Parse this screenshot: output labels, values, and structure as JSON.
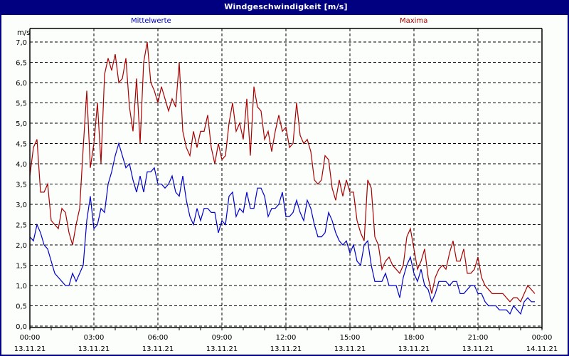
{
  "window": {
    "title": "Windgeschwindigkeit [m/s]"
  },
  "legend": [
    {
      "label": "Mittelwerte",
      "color": "#0000cc"
    },
    {
      "label": "Maxima",
      "color": "#aa0000"
    }
  ],
  "axes": {
    "y_unit": "m/s",
    "y_ticks": [
      "0,0",
      "0,5",
      "1,0",
      "1,5",
      "2,0",
      "2,5",
      "3,0",
      "3,5",
      "4,0",
      "4,5",
      "5,0",
      "5,5",
      "6,0",
      "6,5",
      "7,0"
    ],
    "x_ticks": [
      {
        "time": "00:00",
        "date": "13.11.21"
      },
      {
        "time": "03:00",
        "date": "13.11.21"
      },
      {
        "time": "06:00",
        "date": "13.11.21"
      },
      {
        "time": "09:00",
        "date": "13.11.21"
      },
      {
        "time": "12:00",
        "date": "13.11.21"
      },
      {
        "time": "15:00",
        "date": "13.11.21"
      },
      {
        "time": "18:00",
        "date": "13.11.21"
      },
      {
        "time": "21:00",
        "date": "13.11.21"
      },
      {
        "time": "00:00",
        "date": "14.11.21"
      }
    ]
  },
  "colors": {
    "titlebar": "#000080",
    "mean_line": "#0000cc",
    "max_line": "#aa0000",
    "grid": "#000000"
  },
  "chart_data": {
    "type": "line",
    "title": "Windgeschwindigkeit [m/s]",
    "xlabel": "",
    "ylabel": "m/s",
    "ylim": [
      0,
      7
    ],
    "xlim": [
      "13.11.21 00:00",
      "14.11.21 00:00"
    ],
    "sample_interval_minutes": 10,
    "grid": true,
    "legend_position": "top",
    "series": [
      {
        "name": "Mittelwerte",
        "color": "#0000cc",
        "values": [
          2.2,
          2.1,
          2.5,
          2.3,
          2.0,
          1.9,
          1.6,
          1.3,
          1.2,
          1.1,
          1.0,
          1.0,
          1.3,
          1.1,
          1.3,
          1.5,
          2.6,
          3.2,
          2.4,
          2.5,
          2.9,
          2.8,
          3.5,
          3.8,
          4.2,
          4.5,
          4.2,
          3.9,
          4.0,
          3.6,
          3.3,
          3.7,
          3.3,
          3.8,
          3.8,
          3.9,
          3.5,
          3.5,
          3.4,
          3.5,
          3.7,
          3.3,
          3.2,
          3.7,
          3.1,
          2.7,
          2.5,
          2.9,
          2.6,
          2.9,
          2.9,
          2.8,
          2.8,
          2.3,
          2.6,
          2.5,
          3.2,
          3.3,
          2.7,
          2.9,
          2.8,
          3.3,
          2.9,
          2.9,
          3.4,
          3.4,
          3.2,
          2.7,
          2.9,
          2.9,
          3.0,
          3.3,
          2.7,
          2.7,
          2.8,
          3.1,
          2.8,
          2.6,
          3.1,
          2.9,
          2.5,
          2.2,
          2.2,
          2.3,
          2.8,
          2.6,
          2.3,
          2.1,
          2.0,
          2.1,
          1.8,
          2.0,
          1.6,
          1.5,
          2.0,
          2.1,
          1.5,
          1.1,
          1.1,
          1.1,
          1.3,
          1.0,
          1.0,
          1.0,
          0.7,
          1.2,
          1.5,
          1.7,
          1.3,
          1.1,
          1.4,
          1.0,
          0.9,
          0.6,
          0.8,
          1.1,
          1.1,
          1.1,
          1.0,
          1.1,
          1.1,
          0.8,
          0.8,
          0.9,
          1.0,
          1.0,
          0.8,
          0.8,
          0.6,
          0.5,
          0.5,
          0.5,
          0.4,
          0.4,
          0.4,
          0.3,
          0.5,
          0.4,
          0.3,
          0.6,
          0.7,
          0.6,
          0.6
        ]
      },
      {
        "name": "Maxima",
        "color": "#aa0000",
        "values": [
          3.7,
          4.4,
          4.6,
          3.3,
          3.3,
          3.5,
          2.6,
          2.5,
          2.4,
          2.9,
          2.8,
          2.3,
          2.0,
          2.5,
          2.9,
          4.4,
          5.8,
          3.9,
          4.5,
          5.5,
          4.0,
          6.2,
          6.6,
          6.3,
          6.7,
          6.0,
          6.1,
          6.6,
          5.4,
          4.8,
          6.1,
          4.5,
          6.5,
          7.0,
          6.0,
          5.8,
          5.5,
          5.9,
          5.6,
          5.3,
          5.6,
          5.4,
          6.5,
          4.8,
          4.4,
          4.2,
          4.8,
          4.4,
          4.8,
          4.8,
          5.2,
          4.4,
          4.0,
          4.5,
          4.1,
          4.2,
          5.0,
          5.5,
          4.8,
          5.0,
          4.6,
          5.6,
          4.2,
          5.9,
          5.4,
          5.3,
          4.6,
          4.8,
          4.3,
          4.8,
          5.2,
          4.8,
          4.9,
          4.4,
          4.5,
          5.5,
          4.7,
          4.5,
          4.6,
          4.3,
          3.6,
          3.5,
          3.6,
          4.2,
          4.1,
          3.4,
          3.1,
          3.6,
          3.2,
          3.6,
          3.3,
          3.3,
          2.6,
          2.3,
          2.1,
          3.6,
          3.4,
          2.2,
          2.0,
          1.4,
          1.6,
          1.7,
          1.5,
          1.4,
          1.3,
          1.5,
          2.2,
          2.4,
          1.9,
          1.4,
          1.6,
          1.9,
          1.2,
          0.8,
          1.2,
          1.4,
          1.5,
          1.4,
          1.8,
          2.1,
          1.6,
          1.6,
          1.9,
          1.3,
          1.3,
          1.4,
          1.7,
          1.2,
          1.0,
          0.9,
          0.8,
          0.8,
          0.8,
          0.8,
          0.7,
          0.6,
          0.7,
          0.7,
          0.6,
          0.8,
          1.0,
          0.9,
          0.8
        ]
      }
    ]
  }
}
